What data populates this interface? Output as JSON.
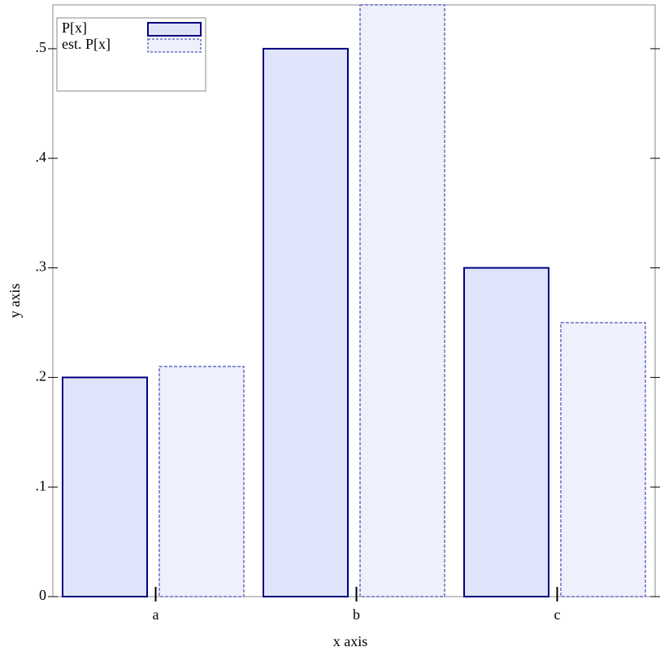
{
  "chart_data": {
    "type": "bar",
    "x_label": "x axis",
    "y_label": "y axis",
    "categories": [
      "a",
      "b",
      "c"
    ],
    "series": [
      {
        "name": "P[x]",
        "color": "#e0e4fb",
        "stroke": "#000080",
        "dashed": false,
        "values": [
          0.2,
          0.5,
          0.3
        ]
      },
      {
        "name": "est. P[x]",
        "color": "#eef0fc",
        "stroke": "#6a6fbf",
        "dashed": true,
        "values": [
          0.21,
          0.54,
          0.25
        ]
      }
    ],
    "ylim": [
      0,
      0.54
    ],
    "yticks": [
      0,
      {
        "value": 0.1,
        "label": ".1"
      },
      {
        "value": 0.2,
        "label": ".2"
      },
      {
        "value": 0.3,
        "label": ".3"
      },
      {
        "value": 0.4,
        "label": ".4"
      },
      {
        "value": 0.5,
        "label": ".5"
      }
    ],
    "legend": "top-left"
  }
}
